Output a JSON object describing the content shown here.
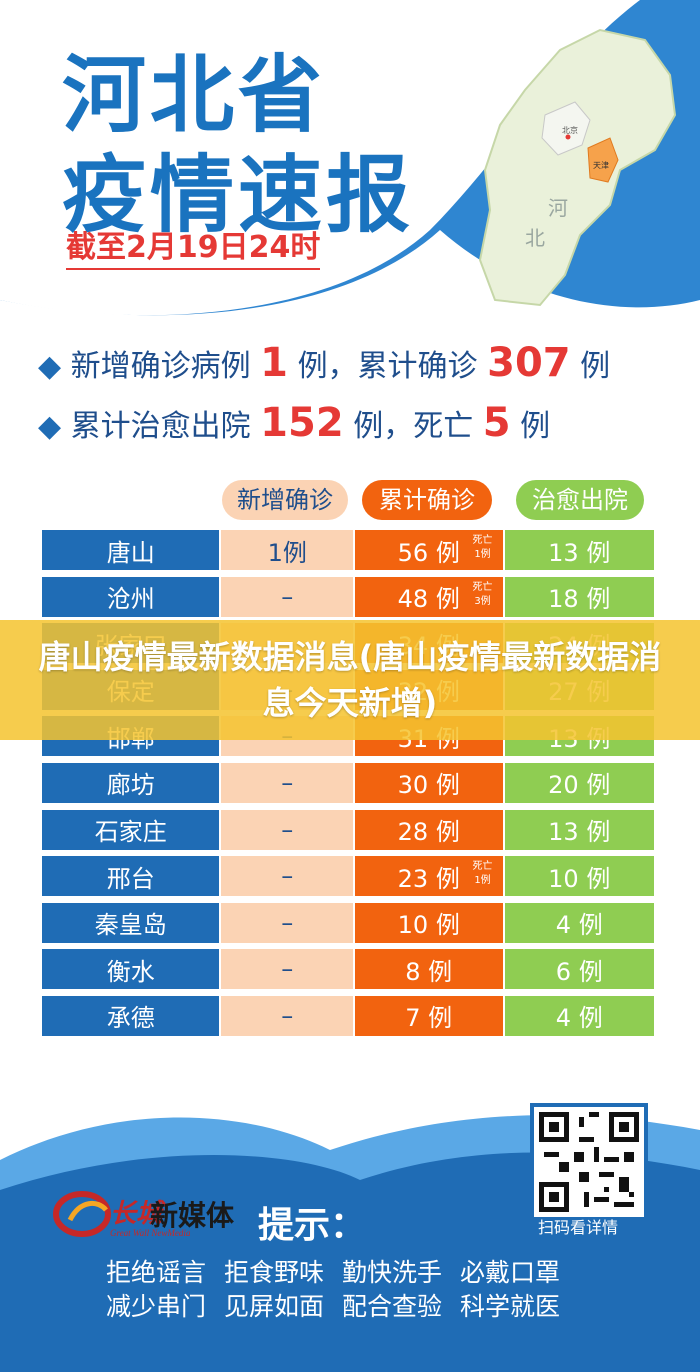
{
  "header": {
    "title_line1": "河北省",
    "title_line2": "疫情速报",
    "date": "截至2月19日24时"
  },
  "map": {
    "label_beijing": "北京",
    "label_tianjin": "天津",
    "label_he": "河",
    "label_bei": "北"
  },
  "summary": {
    "line1_prefix": "新增确诊病例",
    "line1_new": "1",
    "line1_mid": "例，累计确诊",
    "line1_total": "307",
    "line1_suffix": "例",
    "line2_prefix": "累计治愈出院",
    "line2_cured": "152",
    "line2_mid": "例，死亡",
    "line2_death": "5",
    "line2_suffix": "例"
  },
  "table": {
    "headers": {
      "new": "新增确诊",
      "total": "累计确诊",
      "cured": "治愈出院"
    },
    "rows": [
      {
        "city": "唐山",
        "new": "1例",
        "total": "56 例",
        "death": "死亡\n1例",
        "cured": "13 例"
      },
      {
        "city": "沧州",
        "new": "–",
        "total": "48 例",
        "death": "死亡\n3例",
        "cured": "18 例"
      },
      {
        "city": "张家口",
        "new": "–",
        "total": "34 例",
        "death": "",
        "cured": "24 例"
      },
      {
        "city": "保定",
        "new": "–",
        "total": "32 例",
        "death": "",
        "cured": "27 例"
      },
      {
        "city": "邯郸",
        "new": "–",
        "total": "31 例",
        "death": "",
        "cured": "13 例"
      },
      {
        "city": "廊坊",
        "new": "–",
        "total": "30 例",
        "death": "",
        "cured": "20 例"
      },
      {
        "city": "石家庄",
        "new": "–",
        "total": "28 例",
        "death": "",
        "cured": "13 例"
      },
      {
        "city": "邢台",
        "new": "–",
        "total": "23 例",
        "death": "死亡\n1例",
        "cured": "10 例"
      },
      {
        "city": "秦皇岛",
        "new": "–",
        "total": "10 例",
        "death": "",
        "cured": "4 例"
      },
      {
        "city": "衡水",
        "new": "–",
        "total": "8 例",
        "death": "",
        "cured": "6 例"
      },
      {
        "city": "承德",
        "new": "–",
        "total": "7 例",
        "death": "",
        "cured": "4 例"
      }
    ]
  },
  "overlay": {
    "text": "唐山疫情最新数据消息(唐山疫情最新数据消息今天新增)"
  },
  "footer": {
    "brand": "新媒体",
    "brand_en": "Great Wall NewMedia",
    "tip": "提示：",
    "qr_caption": "扫码看详情",
    "slogans": [
      "拒绝谣言",
      "拒食野味",
      "勤快洗手",
      "必戴口罩",
      "减少串门",
      "见屏如面",
      "配合查验",
      "科学就医"
    ]
  },
  "colors": {
    "blue": "#1f6cb5",
    "orange": "#f2630f",
    "green": "#8fcd52",
    "peach": "#fbd3b4",
    "red": "#e53935",
    "overlay": "#f4c430"
  }
}
